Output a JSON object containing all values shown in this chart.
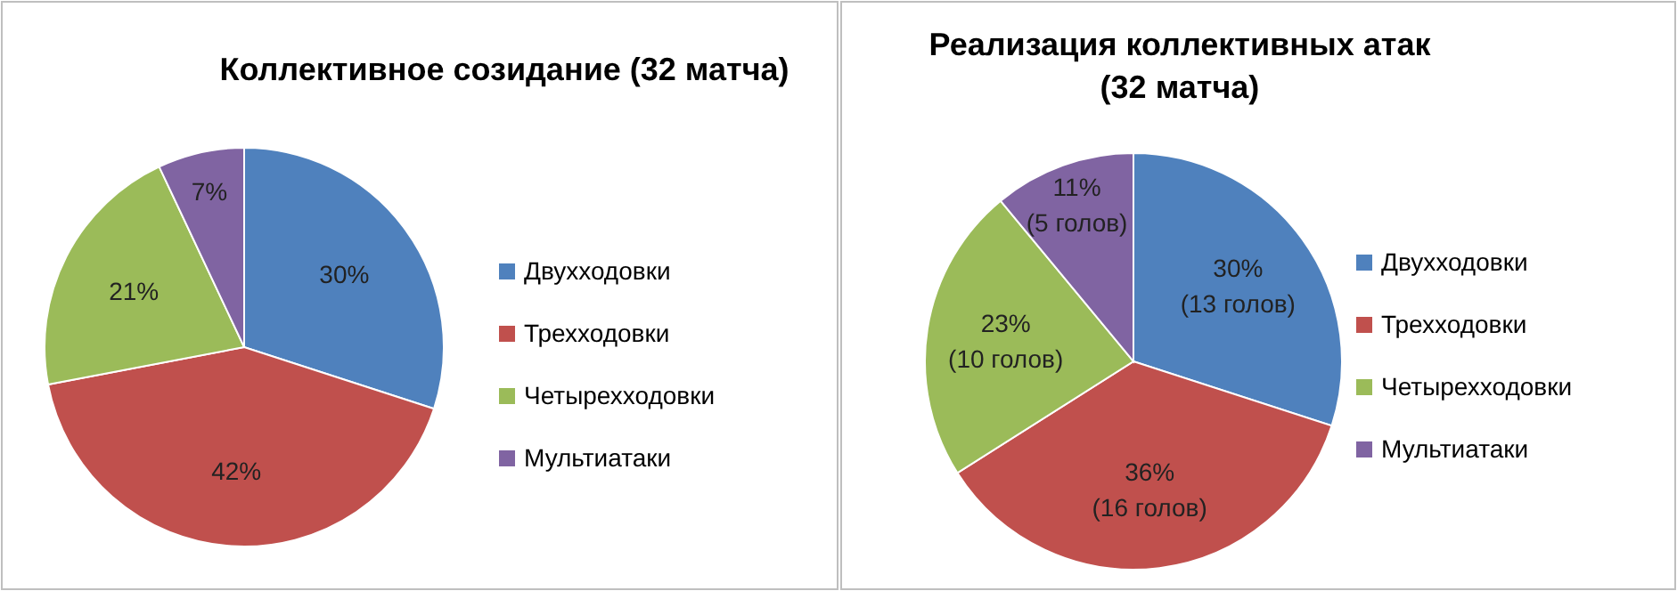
{
  "chart_data": [
    {
      "type": "pie",
      "title": "Коллективное созидание (32 матча)",
      "categories": [
        "Двухходовки",
        "Трехходовки",
        "Четырехходовки",
        "Мультиатаки"
      ],
      "values": [
        30,
        42,
        21,
        7
      ],
      "colors": [
        "#4f81bd",
        "#c0504d",
        "#9bbb59",
        "#8064a2"
      ],
      "value_labels": [
        "30%",
        "42%",
        "21%",
        "7%"
      ],
      "legend": "right"
    },
    {
      "type": "pie",
      "title": "Реализация коллективных атак (32 матча)",
      "categories": [
        "Двухходовки",
        "Трехходовки",
        "Четырехходовки",
        "Мультиатаки"
      ],
      "values": [
        30,
        36,
        23,
        11
      ],
      "colors": [
        "#4f81bd",
        "#c0504d",
        "#9bbb59",
        "#8064a2"
      ],
      "value_labels": [
        "30%\n(13 голов)",
        "36%\n(16 голов)",
        "23%\n(10 голов)",
        "11%\n(5 голов)"
      ],
      "legend": "right"
    }
  ]
}
